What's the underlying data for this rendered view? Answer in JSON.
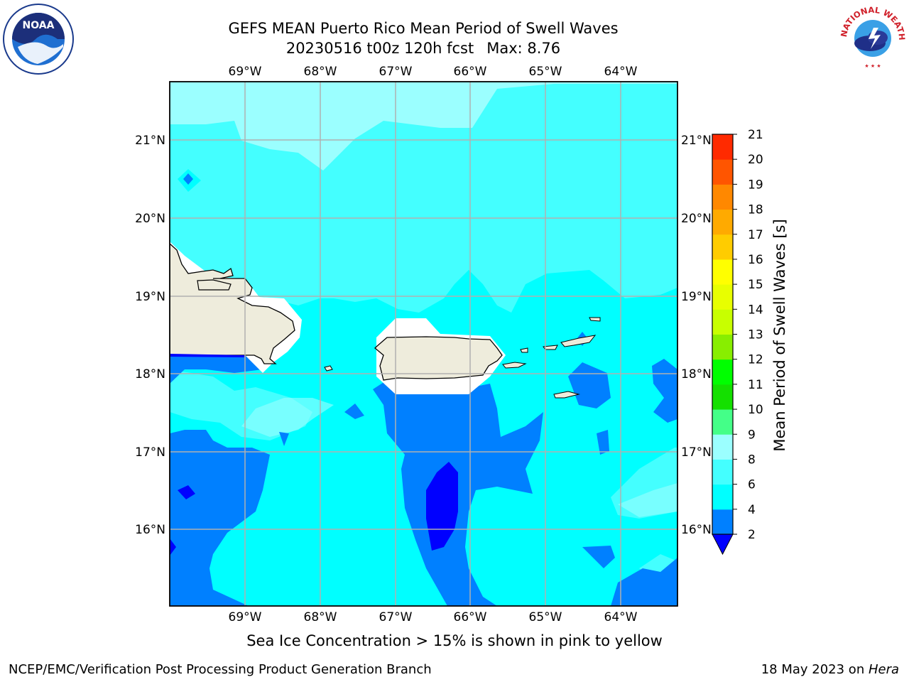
{
  "title": {
    "line1": "GEFS MEAN Puerto Rico Mean Period of Swell Waves",
    "date_run": "20230516 t00z 120h fcst",
    "max_label": "Max: 8.76"
  },
  "map": {
    "region": "Puerto Rico",
    "lon_ticks": [
      "69°W",
      "68°W",
      "67°W",
      "66°W",
      "65°W",
      "64°W"
    ],
    "lat_ticks": [
      "21°N",
      "20°N",
      "19°N",
      "18°N",
      "17°N",
      "16°N"
    ],
    "lon_range": [
      -70.0,
      -63.25
    ],
    "lat_range": [
      15.0,
      21.75
    ],
    "grid": true,
    "land_color": "#eeecdc",
    "no_data_color": "#ffffff"
  },
  "colorbar": {
    "label": "Mean Period of Swell Waves [s]",
    "ticks": [
      "2",
      "4",
      "6",
      "8",
      "9",
      "10",
      "11",
      "12",
      "13",
      "14",
      "15",
      "16",
      "17",
      "18",
      "19",
      "20",
      "21"
    ],
    "levels": [
      2,
      4,
      6,
      8,
      9,
      10,
      11,
      12,
      13,
      14,
      15,
      16,
      17,
      18,
      19,
      20,
      21
    ],
    "colors": [
      "#0080ff",
      "#00ffff",
      "#44ffff",
      "#9bffff",
      "#44ff88",
      "#14e000",
      "#00ff00",
      "#88ee00",
      "#c8ff00",
      "#e8ff00",
      "#ffff00",
      "#ffcc00",
      "#ffaa00",
      "#ff8800",
      "#ff5500",
      "#ff2a00"
    ],
    "under_color": "#0000ff",
    "extend": "min"
  },
  "footer": {
    "sea_ice_note": "Sea Ice Concentration > 15% is shown in pink to yellow",
    "credit": "NCEP/EMC/Verification Post Processing Product Generation Branch",
    "date_prefix": "18 May 2023 on ",
    "machine": "Hera"
  },
  "logos": {
    "left_text": "NOAA",
    "right_text": "NATIONAL WEATHER SERVICE"
  }
}
